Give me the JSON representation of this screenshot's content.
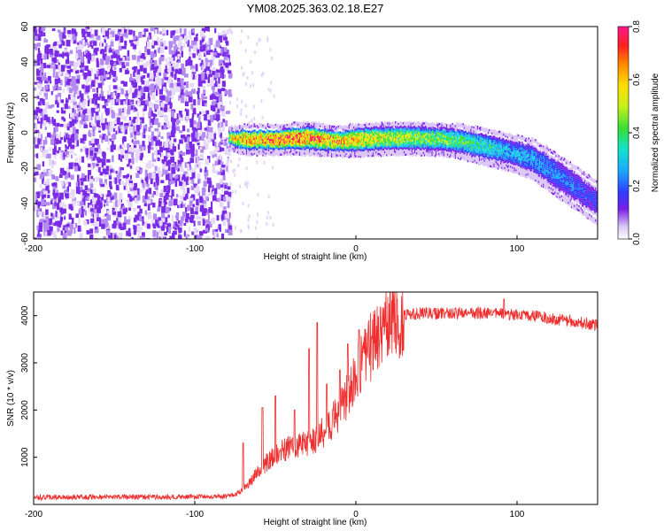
{
  "title": "YM08.2025.363.02.18.E27",
  "chart_data": [
    {
      "type": "heatmap",
      "xlabel": "Height of straight line (km)",
      "ylabel": "Frequency (Hz)",
      "xlim": [
        -200,
        150
      ],
      "ylim": [
        -60,
        60
      ],
      "xticks": [
        "-200",
        "-100",
        "0",
        "100"
      ],
      "yticks": [
        "60",
        "40",
        "20",
        "0",
        "-20",
        "-40",
        "-60"
      ],
      "colorbar": {
        "label": "Normalized spectral amplitude",
        "range": [
          0,
          0.8
        ],
        "ticks": [
          "0.0",
          "0.2",
          "0.4",
          "0.6",
          "0.8"
        ]
      },
      "noise_region_x": [
        -200,
        -79
      ],
      "signal_trace": {
        "x": [
          -79,
          -70,
          -50,
          -30,
          -10,
          0,
          20,
          40,
          60,
          80,
          95,
          110,
          125,
          140,
          150
        ],
        "center_hz": [
          -3,
          -4,
          -4,
          -3,
          -5,
          -4,
          -3,
          -3,
          -4,
          -8,
          -11,
          -15,
          -24,
          -33,
          -40
        ],
        "halfwidth_hz": [
          4,
          6,
          6,
          7,
          6,
          7,
          7,
          7,
          7,
          8,
          8,
          9,
          10,
          10,
          10
        ],
        "peak_amplitude": [
          0.55,
          0.65,
          0.7,
          0.7,
          0.65,
          0.6,
          0.55,
          0.5,
          0.45,
          0.38,
          0.32,
          0.3,
          0.26,
          0.22,
          0.2
        ]
      }
    },
    {
      "type": "line",
      "xlabel": "Height of straight line (km)",
      "ylabel": "SNR (10 * v/v)",
      "xlim": [
        -200,
        150
      ],
      "ylim": [
        0,
        4500
      ],
      "xticks": [
        "-200",
        "-100",
        "0",
        "100"
      ],
      "yticks": [
        "1000",
        "2000",
        "3000",
        "4000"
      ],
      "color": "#ee2d2d",
      "series": [
        {
          "name": "SNR",
          "x": [
            -200,
            -150,
            -100,
            -80,
            -72,
            -65,
            -60,
            -55,
            -50,
            -45,
            -40,
            -35,
            -30,
            -25,
            -20,
            -15,
            -10,
            -5,
            0,
            5,
            10,
            15,
            20,
            25,
            30,
            40,
            50,
            60,
            70,
            80,
            90,
            100,
            110,
            120,
            130,
            140,
            150
          ],
          "y": [
            150,
            160,
            160,
            170,
            250,
            500,
            750,
            900,
            1050,
            1150,
            1200,
            1250,
            1300,
            1400,
            1550,
            1750,
            2000,
            2350,
            2700,
            3050,
            3400,
            3650,
            3850,
            3950,
            4000,
            4050,
            4050,
            4050,
            4050,
            4050,
            4050,
            4000,
            4000,
            3950,
            3900,
            3850,
            3800
          ],
          "spikes": [
            {
              "x": -70,
              "y": 1300
            },
            {
              "x": -58,
              "y": 2050
            },
            {
              "x": -50,
              "y": 2300
            },
            {
              "x": -38,
              "y": 2000
            },
            {
              "x": -29,
              "y": 3300
            },
            {
              "x": -24,
              "y": 3850
            },
            {
              "x": -18,
              "y": 2550
            },
            {
              "x": -10,
              "y": 2850
            },
            {
              "x": -5,
              "y": 3400
            },
            {
              "x": 2,
              "y": 3700
            },
            {
              "x": 92,
              "y": 4350
            }
          ]
        }
      ]
    }
  ]
}
